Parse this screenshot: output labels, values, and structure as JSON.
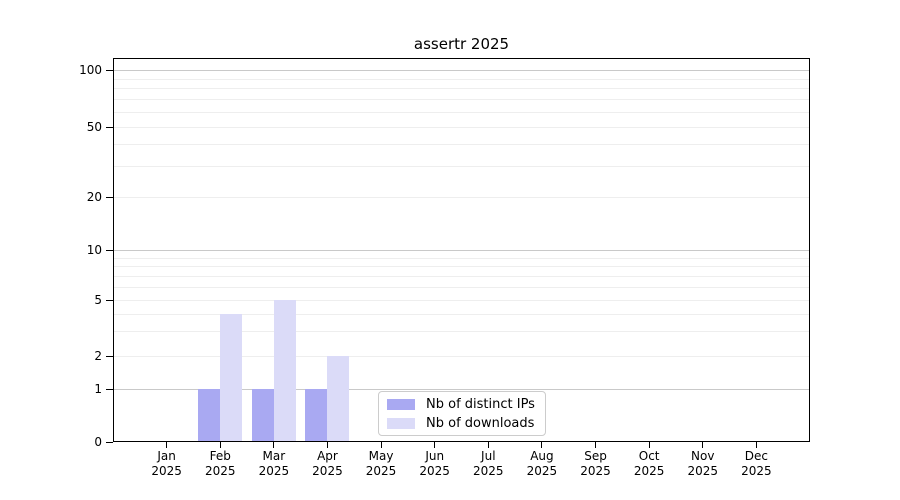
{
  "chart_data": {
    "type": "bar",
    "title": "assertr 2025",
    "categories": [
      "Jan",
      "Feb",
      "Mar",
      "Apr",
      "May",
      "Jun",
      "Jul",
      "Aug",
      "Sep",
      "Oct",
      "Nov",
      "Dec"
    ],
    "category_year": "2025",
    "series": [
      {
        "name": "Nb of distinct IPs",
        "color": "#a9a9f2",
        "values": [
          0,
          1,
          1,
          1,
          0,
          0,
          0,
          0,
          0,
          0,
          0,
          0
        ]
      },
      {
        "name": "Nb of downloads",
        "color": "#dbdbf8",
        "values": [
          0,
          4,
          5,
          2,
          0,
          0,
          0,
          0,
          0,
          0,
          0,
          0
        ]
      }
    ],
    "y_axis": {
      "scale": "log-like",
      "ticks": [
        100,
        50,
        20,
        10,
        5,
        2,
        1,
        0
      ],
      "range": [
        0,
        100
      ],
      "grid": true
    },
    "x_axis": {
      "tick_label_line2": "2025"
    },
    "legend": {
      "position": "bottom-center"
    },
    "colors": {
      "spine": "#000000",
      "grid_minor": "#eeeeee",
      "grid_major": "#c9c9c9"
    }
  }
}
